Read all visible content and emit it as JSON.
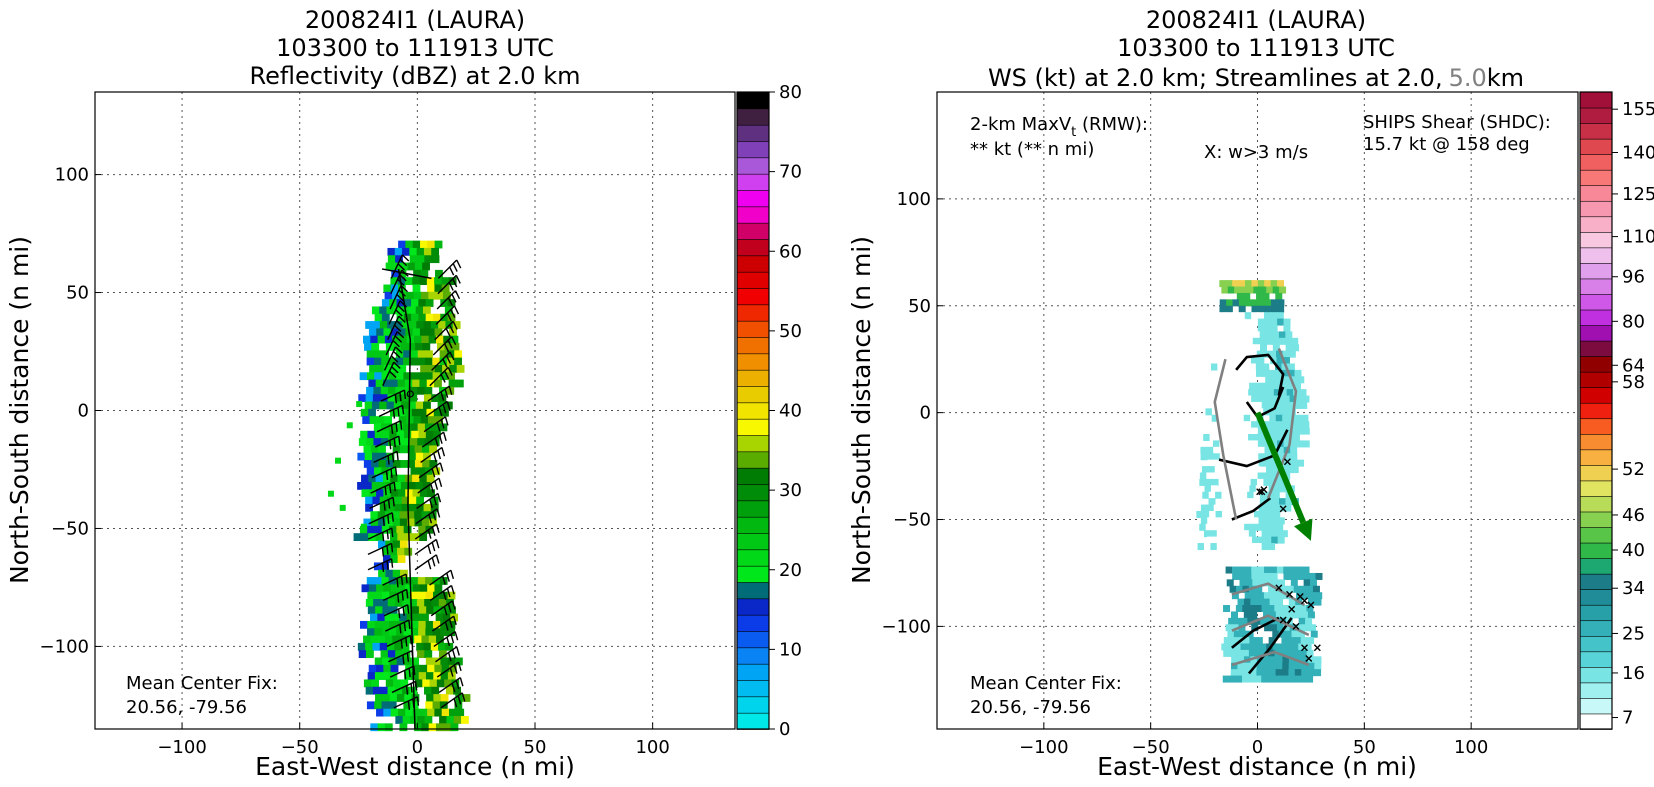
{
  "chart_data": [
    {
      "type": "heatmap",
      "title_lines": [
        "200824I1 (LAURA)",
        "103300 to 111913 UTC",
        "Reflectivity (dBZ) at 2.0 km"
      ],
      "xlabel": "East-West distance (n mi)",
      "ylabel": "North-South distance (n mi)",
      "xlim": [
        -137,
        135
      ],
      "ylim": [
        -135,
        135
      ],
      "xticks": [
        -100,
        -50,
        0,
        50,
        100
      ],
      "yticks": [
        -100,
        -50,
        0,
        50,
        100
      ],
      "grid": true,
      "mean_center_fix_label": "Mean Center Fix:",
      "mean_center_fix_value": "20.56, -79.56",
      "colorbar": {
        "label_values": [
          0,
          10,
          20,
          30,
          40,
          50,
          60,
          70,
          80
        ],
        "colors": [
          "#00e8e8",
          "#00d4ec",
          "#00bcf0",
          "#00a4f4",
          "#0a84f4",
          "#0a5cf0",
          "#0c3ce8",
          "#0a28c8",
          "#006c78",
          "#00e81c",
          "#00d818",
          "#00c814",
          "#00b810",
          "#00a00c",
          "#008c08",
          "#007c04",
          "#5aac00",
          "#a8d400",
          "#f8f800",
          "#f0e400",
          "#e8cc00",
          "#ecb000",
          "#f09000",
          "#f07000",
          "#f05000",
          "#f02800",
          "#f00000",
          "#e00000",
          "#cc0000",
          "#c0001c",
          "#d00068",
          "#f000c8",
          "#f000f0",
          "#d040f0",
          "#a858d8",
          "#8040b8",
          "#603080",
          "#402040",
          "#000000"
        ]
      },
      "wind_barbs": true
    },
    {
      "type": "heatmap",
      "title_lines": [
        "200824I1 (LAURA)",
        "103300 to 111913 UTC"
      ],
      "title_line3_part1": "WS (kt) at 2.0 km; Streamlines at 2.0,",
      "title_line3_part2": "5.0",
      "title_line3_part3": "km",
      "title_gray_color": "#808080",
      "xlabel": "East-West distance (n mi)",
      "ylabel": "North-South distance (n mi)",
      "xlim": [
        -150,
        150
      ],
      "ylim": [
        -148,
        150
      ],
      "xticks": [
        -100,
        -50,
        0,
        50,
        100
      ],
      "yticks": [
        -100,
        -50,
        0,
        50,
        100
      ],
      "grid": true,
      "maxvt_label": "2-km MaxV",
      "maxvt_sub": "t",
      "maxvt_suffix": " (RMW):",
      "maxvt_value": "** kt (** n mi)",
      "w_label": "X: w>3 m/s",
      "shear_label": "SHIPS Shear (SHDC):",
      "shear_value": "15.7 kt @ 158 deg",
      "shear_color": "#008000",
      "shear_arrow": {
        "from": [
          0,
          0
        ],
        "to": [
          25,
          -60
        ]
      },
      "mean_center_fix_label": "Mean Center Fix:",
      "mean_center_fix_value": "20.56, -79.56",
      "colorbar": {
        "label_values": [
          7,
          16,
          25,
          34,
          40,
          46,
          52,
          58,
          64,
          80,
          96,
          110,
          125,
          140,
          155
        ],
        "colors": [
          "#ffffff",
          "#c8f8f8",
          "#a0f0f0",
          "#78e4e4",
          "#58d4d8",
          "#44c4c8",
          "#34b0b8",
          "#28a0a8",
          "#208c98",
          "#1c7c88",
          "#1ca870",
          "#30b848",
          "#58c448",
          "#88d050",
          "#b8dc58",
          "#e0e460",
          "#f0d050",
          "#f8b040",
          "#f88c30",
          "#f85c20",
          "#f02010",
          "#d00000",
          "#b00000",
          "#900000",
          "#7c0c40",
          "#a010b0",
          "#c030e0",
          "#d058e8",
          "#d880e8",
          "#e0a0ec",
          "#f0c0ec",
          "#f8c8e0",
          "#f8b0c8",
          "#f898b0",
          "#f88898",
          "#f87878",
          "#f06060",
          "#e04850",
          "#c83048",
          "#b01c40",
          "#a01038"
        ]
      }
    }
  ]
}
